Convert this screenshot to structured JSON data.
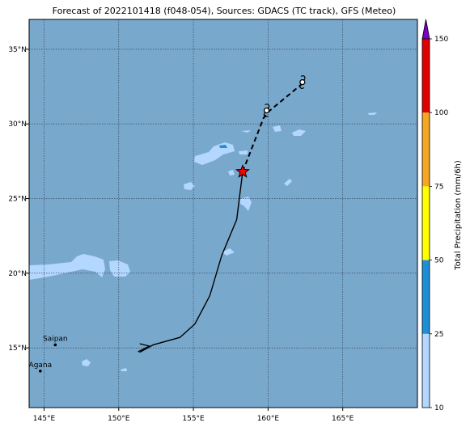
{
  "title": "Forecast of 2022101418 (f048-054), Sources: GDACS (TC track), GFS (Meteo)",
  "map": {
    "lon_range": [
      144,
      170
    ],
    "lat_range": [
      11,
      37
    ],
    "lon_ticks": [
      {
        "value": 145,
        "label": "145°E"
      },
      {
        "value": 150,
        "label": "150°E"
      },
      {
        "value": 155,
        "label": "155°E"
      },
      {
        "value": 160,
        "label": "160°E"
      },
      {
        "value": 165,
        "label": "165°E"
      }
    ],
    "lat_ticks": [
      {
        "value": 15,
        "label": "15°N"
      },
      {
        "value": 20,
        "label": "20°N"
      },
      {
        "value": 25,
        "label": "25°N"
      },
      {
        "value": 30,
        "label": "30°N"
      },
      {
        "value": 35,
        "label": "35°N"
      }
    ],
    "ocean_color": "#79a8cd",
    "cities": [
      {
        "name": "Saipan",
        "lon": 145.75,
        "lat": 15.2
      },
      {
        "name": "Agana",
        "lon": 144.75,
        "lat": 13.45
      }
    ],
    "track_past": [
      [
        151.4,
        14.7
      ],
      [
        152.3,
        15.2
      ],
      [
        154.1,
        15.7
      ],
      [
        155.1,
        16.6
      ],
      [
        156.1,
        18.5
      ],
      [
        156.9,
        21.2
      ],
      [
        157.9,
        23.6
      ],
      [
        158.3,
        26.8
      ]
    ],
    "track_forecast": [
      [
        158.3,
        26.8
      ],
      [
        159.7,
        30.4
      ],
      [
        160.0,
        30.8
      ],
      [
        162.3,
        32.7
      ]
    ],
    "current_position": {
      "lon": 158.3,
      "lat": 26.8
    },
    "forecast_points": [
      {
        "lon": 159.9,
        "lat": 30.9
      },
      {
        "lon": 162.3,
        "lat": 32.8
      }
    ],
    "track_start": {
      "lon": 151.4,
      "lat": 14.9
    }
  },
  "colorbar": {
    "label": "Total Precipitation (mm/6h)",
    "bins": [
      {
        "from": 10,
        "to": 25,
        "color": "#b3d7ff"
      },
      {
        "from": 25,
        "to": 50,
        "color": "#1c8fd6"
      },
      {
        "from": 50,
        "to": 75,
        "color": "#ffff00"
      },
      {
        "from": 75,
        "to": 100,
        "color": "#f5a623"
      },
      {
        "from": 100,
        "to": 150,
        "color": "#e00000"
      }
    ],
    "extend_color": "#7a00c8",
    "ticks": [
      "10",
      "25",
      "50",
      "75",
      "100",
      "150"
    ]
  }
}
